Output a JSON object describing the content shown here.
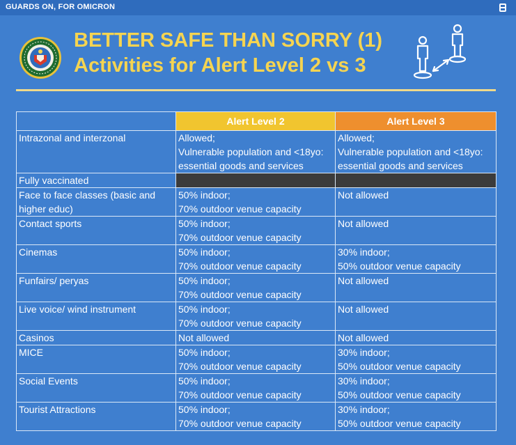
{
  "top_bar": {
    "tag": "GUARDS ON, FOR OMICRON"
  },
  "header": {
    "title_line1": "BETTER SAFE THAN SORRY (1)",
    "title_line2": "Activities for Alert Level 2 vs 3"
  },
  "colors": {
    "background": "#3f7fcf",
    "title": "#f5d451",
    "alert2": "#f1c52f",
    "alert3": "#ee8f2e",
    "fully_vaccinated_cell": "#3b3b3b"
  },
  "icons": [
    "doh-seal-icon",
    "social-distancing-icon",
    "corner-logo-icon"
  ],
  "table": {
    "columns": [
      "",
      "Alert Level 2",
      "Alert Level 3"
    ],
    "rows": [
      {
        "activity": "Intrazonal and interzonal",
        "alert2": [
          "Allowed;",
          "Vulnerable population and <18yo:",
          "essential goods and services"
        ],
        "alert3": [
          "Allowed;",
          "Vulnerable population and <18yo:",
          "essential goods and services"
        ]
      },
      {
        "activity": "Fully vaccinated",
        "alert2": [],
        "alert3": []
      },
      {
        "activity": "Face to face classes (basic and higher educ)",
        "alert2": [
          "50% indoor;",
          "70% outdoor venue capacity"
        ],
        "alert3": [
          "Not allowed"
        ]
      },
      {
        "activity": "Contact sports",
        "alert2": [
          "50% indoor;",
          "70% outdoor venue capacity"
        ],
        "alert3": [
          "Not allowed"
        ]
      },
      {
        "activity": "Cinemas",
        "alert2": [
          "50% indoor;",
          "70% outdoor venue capacity"
        ],
        "alert3": [
          "30% indoor;",
          "50% outdoor venue capacity"
        ]
      },
      {
        "activity": "Funfairs/ peryas",
        "alert2": [
          "50% indoor;",
          "70% outdoor venue capacity"
        ],
        "alert3": [
          "Not allowed"
        ]
      },
      {
        "activity": "Live voice/ wind instrument",
        "alert2": [
          "50% indoor;",
          "70% outdoor venue capacity"
        ],
        "alert3": [
          "Not allowed"
        ]
      },
      {
        "activity": "Casinos",
        "alert2": [
          "Not allowed"
        ],
        "alert3": [
          "Not allowed"
        ]
      },
      {
        "activity": "MICE",
        "alert2": [
          "50% indoor;",
          "70% outdoor venue capacity"
        ],
        "alert3": [
          "30% indoor;",
          "50% outdoor venue capacity"
        ]
      },
      {
        "activity": "Social Events",
        "alert2": [
          "50% indoor;",
          "70% outdoor venue capacity"
        ],
        "alert3": [
          "30% indoor;",
          "50% outdoor venue capacity"
        ]
      },
      {
        "activity": "Tourist Attractions",
        "alert2": [
          "50% indoor;",
          "70% outdoor venue capacity"
        ],
        "alert3": [
          "30% indoor;",
          "50% outdoor venue capacity"
        ]
      }
    ]
  }
}
